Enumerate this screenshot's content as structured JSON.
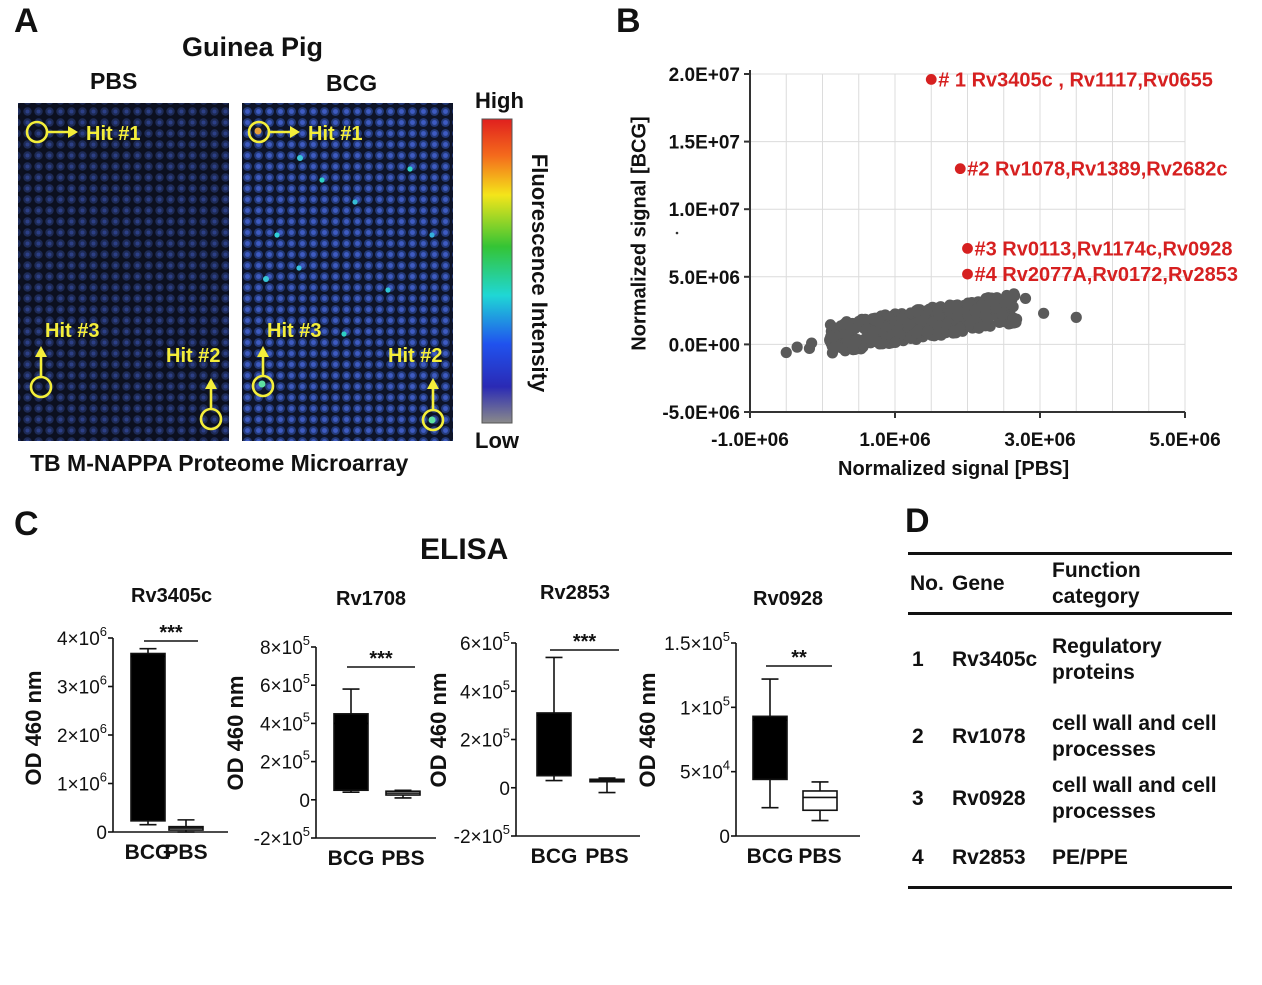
{
  "panels": {
    "a": {
      "letter": "A",
      "title": "Guinea Pig",
      "left_label": "PBS",
      "right_label": "BCG",
      "hits": [
        "Hit #1",
        "Hit #2",
        "Hit #3"
      ],
      "scale_high": "High",
      "scale_low": "Low",
      "scale_title": "Fluorescence Intensity",
      "caption": "TB M-NAPPA Proteome Microarray"
    },
    "b": {
      "letter": "B",
      "xlabel": "Normalized signal [PBS]",
      "ylabel": "Normalized signal [BCG]",
      "x_ticks": [
        "-1.0E+06",
        "1.0E+06",
        "3.0E+06",
        "5.0E+06"
      ],
      "y_ticks": [
        "2.0E+07",
        "1.5E+07",
        "1.0E+07",
        "5.0E+06",
        "0.0E+00",
        "-5.0E+06"
      ],
      "highlight_labels": [
        "# 1 Rv3405c , Rv1117,Rv0655",
        "#2 Rv1078,Rv1389,Rv2682c",
        "#3 Rv0113,Rv1174c,Rv0928",
        "#4 Rv2077A,Rv0172,Rv2853"
      ],
      "highlight_color": "#d62020",
      "point_color": "#5a5a5a"
    },
    "c": {
      "letter": "C",
      "title": "ELISA",
      "ylabel": "OD 460 nm"
    },
    "d": {
      "letter": "D",
      "headers": {
        "no": "No.",
        "gene": "Gene",
        "function_1": "Function",
        "function_2": "category"
      },
      "rows": [
        {
          "no": "1",
          "gene": "Rv3405c",
          "f1": "Regulatory",
          "f2": "proteins"
        },
        {
          "no": "2",
          "gene": "Rv1078",
          "f1": "cell wall and cell",
          "f2": "processes"
        },
        {
          "no": "3",
          "gene": "Rv0928",
          "f1": "cell wall and cell",
          "f2": "processes"
        },
        {
          "no": "4",
          "gene": "Rv2853",
          "f1": "PE/PPE",
          "f2": ""
        }
      ]
    }
  },
  "chart_data": [
    {
      "type": "scatter",
      "xlabel": "Normalized signal [PBS]",
      "ylabel": "Normalized signal [BCG]",
      "xlim": [
        -1000000,
        5000000
      ],
      "ylim": [
        -5000000,
        20000000
      ],
      "grid": true,
      "highlighted": [
        {
          "label": "# 1 Rv3405c , Rv1117,Rv0655",
          "x": 1500000,
          "y": 19600000
        },
        {
          "label": "#2 Rv1078,Rv1389,Rv2682c",
          "x": 1900000,
          "y": 13000000
        },
        {
          "label": "#3 Rv0113,Rv1174c,Rv0928",
          "x": 2000000,
          "y": 7100000
        },
        {
          "label": "#4 Rv2077A,Rv0172,Rv2853",
          "x": 2000000,
          "y": 5200000
        }
      ]
    },
    {
      "type": "box",
      "title": "Rv3405c",
      "ylabel": "OD 460 nm",
      "categories": [
        "BCG",
        "PBS"
      ],
      "ylim": [
        0,
        4000000
      ],
      "y_ticks": [
        {
          "value": 0,
          "label": "0",
          "sup": ""
        },
        {
          "value": 1000000,
          "label": "1×10",
          "sup": "6"
        },
        {
          "value": 2000000,
          "label": "2×10",
          "sup": "6"
        },
        {
          "value": 3000000,
          "label": "3×10",
          "sup": "6"
        },
        {
          "value": 4000000,
          "label": "4×10",
          "sup": "6"
        }
      ],
      "significance": "***",
      "boxes": [
        {
          "name": "BCG",
          "min": 150000,
          "q1": 230000,
          "median": 3620000,
          "q3": 3680000,
          "max": 3780000,
          "fill": "black"
        },
        {
          "name": "PBS",
          "min": 0,
          "q1": 40000,
          "median": 80000,
          "q3": 110000,
          "max": 250000,
          "fill": "white"
        }
      ]
    },
    {
      "type": "box",
      "title": "Rv1708",
      "ylabel": "OD 460 nm",
      "categories": [
        "BCG",
        "PBS"
      ],
      "ylim": [
        -200000,
        800000
      ],
      "y_ticks": [
        {
          "value": -200000,
          "label": "-2×10",
          "sup": "5"
        },
        {
          "value": 0,
          "label": "0",
          "sup": ""
        },
        {
          "value": 200000,
          "label": "2×10",
          "sup": "5"
        },
        {
          "value": 400000,
          "label": "4×10",
          "sup": "5"
        },
        {
          "value": 600000,
          "label": "6×10",
          "sup": "5"
        },
        {
          "value": 800000,
          "label": "8×10",
          "sup": "5"
        }
      ],
      "significance": "***",
      "boxes": [
        {
          "name": "BCG",
          "min": 40000,
          "q1": 50000,
          "median": 400000,
          "q3": 450000,
          "max": 580000,
          "fill": "black"
        },
        {
          "name": "PBS",
          "min": 10000,
          "q1": 25000,
          "median": 35000,
          "q3": 45000,
          "max": 50000,
          "fill": "white"
        }
      ]
    },
    {
      "type": "box",
      "title": "Rv2853",
      "ylabel": "OD 460 nm",
      "categories": [
        "BCG",
        "PBS"
      ],
      "ylim": [
        -200000,
        600000
      ],
      "y_ticks": [
        {
          "value": -200000,
          "label": "-2×10",
          "sup": "5"
        },
        {
          "value": 0,
          "label": "0",
          "sup": ""
        },
        {
          "value": 200000,
          "label": "2×10",
          "sup": "5"
        },
        {
          "value": 400000,
          "label": "4×10",
          "sup": "5"
        },
        {
          "value": 600000,
          "label": "6×10",
          "sup": "5"
        }
      ],
      "significance": "***",
      "boxes": [
        {
          "name": "BCG",
          "min": 30000,
          "q1": 50000,
          "median": 300000,
          "q3": 310000,
          "max": 540000,
          "fill": "black"
        },
        {
          "name": "PBS",
          "min": -20000,
          "q1": 25000,
          "median": 30000,
          "q3": 35000,
          "max": 40000,
          "fill": "white"
        }
      ]
    },
    {
      "type": "box",
      "title": "Rv0928",
      "ylabel": "OD 460 nm",
      "categories": [
        "BCG",
        "PBS"
      ],
      "ylim": [
        0,
        150000
      ],
      "y_ticks": [
        {
          "value": 0,
          "label": "0",
          "sup": ""
        },
        {
          "value": 50000,
          "label": "5×10",
          "sup": "4"
        },
        {
          "value": 100000,
          "label": "1×10",
          "sup": "5"
        },
        {
          "value": 150000,
          "label": "1.5×10",
          "sup": "5"
        }
      ],
      "significance": "**",
      "boxes": [
        {
          "name": "BCG",
          "min": 22000,
          "q1": 44000,
          "median": 90000,
          "q3": 93000,
          "max": 122000,
          "fill": "black"
        },
        {
          "name": "PBS",
          "min": 12000,
          "q1": 20000,
          "median": 30000,
          "q3": 35000,
          "max": 42000,
          "fill": "white"
        }
      ]
    }
  ]
}
